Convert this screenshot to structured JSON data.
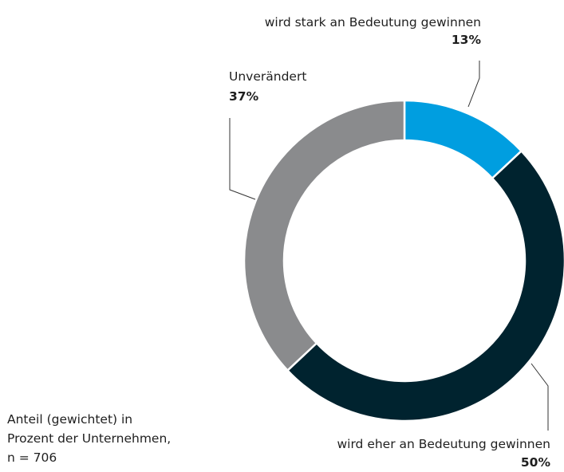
{
  "chart_data": {
    "type": "pie",
    "style": "donut",
    "slices": [
      {
        "label": "wird stark an Bedeutung gewinnen",
        "value": 13,
        "display": "13%",
        "color": "#009ee0"
      },
      {
        "label": "wird eher an Bedeutung gewinnen",
        "value": 50,
        "display": "50%",
        "color": "#00232f"
      },
      {
        "label": "Unverändert",
        "value": 37,
        "display": "37%",
        "color": "#8a8b8d"
      }
    ],
    "note_lines": [
      "Anteil (gewichtet) in",
      "Prozent der Unternehmen,",
      "n = 706"
    ]
  }
}
